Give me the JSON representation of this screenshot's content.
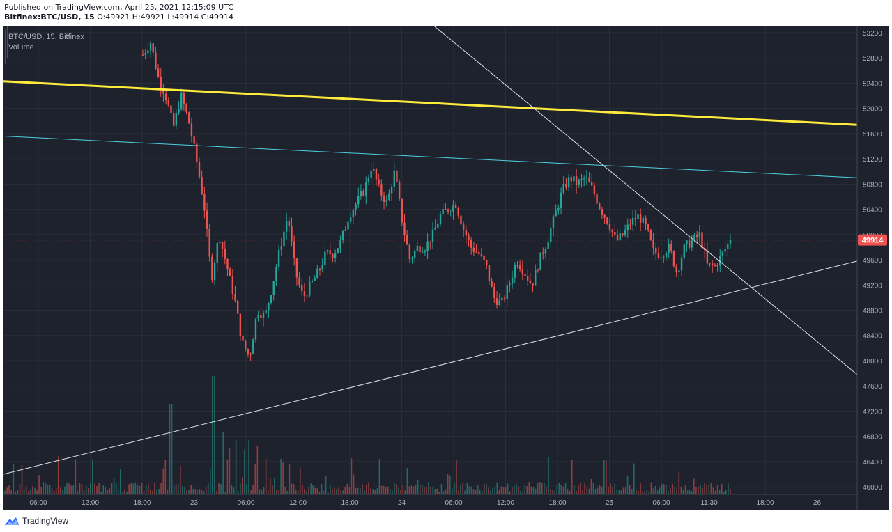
{
  "header": {
    "published": "Published on TradingView.com, April 25, 2021 12:15:09 UTC",
    "symbol_line": "Bitfinex:BTC/USD, 15",
    "ohlc": " O:49921 H:49921 L:49914 C:49914"
  },
  "chart_data": {
    "type": "candlestick",
    "title": "BTC/USD, 15, Bitfinex",
    "volume_label": "Volume",
    "last_price": 49914,
    "last_price_label": "49914",
    "y_ticks": [
      "53200",
      "52800",
      "52400",
      "52000",
      "51600",
      "51200",
      "50800",
      "50400",
      "50000",
      "49600",
      "49200",
      "48800",
      "48400",
      "48000",
      "47600",
      "47200",
      "46800",
      "46400",
      "46000"
    ],
    "y_tick_values": [
      53200,
      52800,
      52400,
      52000,
      51600,
      51200,
      50800,
      50400,
      50000,
      49600,
      49200,
      48800,
      48400,
      48000,
      47600,
      47200,
      46800,
      46400,
      46000
    ],
    "x_ticks": [
      "06:00",
      "12:00",
      "18:00",
      "23",
      "06:00",
      "12:00",
      "18:00",
      "24",
      "06:00",
      "12:00",
      "18:00",
      "25",
      "06:00",
      "11:30",
      "18:00",
      "26"
    ],
    "ylim": [
      45880,
      53310
    ],
    "colors": {
      "background": "#1e222d",
      "up": "#26a69a",
      "down": "#ef5350",
      "grid": "#2a2e39",
      "text": "#b2b5be",
      "price_badge": "#ef5350",
      "yellow_line": "#ffeb3b",
      "cyan_line": "#4dd0e1",
      "trend_line": "#e0e3eb"
    },
    "trend_lines": [
      {
        "color": "yellow",
        "from": {
          "x": 0,
          "y": 52430
        },
        "to": {
          "x": 1,
          "y": 51740
        }
      },
      {
        "color": "cyan",
        "from": {
          "x": 0,
          "y": 51560
        },
        "to": {
          "x": 1,
          "y": 50900
        }
      },
      {
        "color": "white",
        "from": {
          "x": 0,
          "y": 46200
        },
        "to": {
          "x": 1,
          "y": 49580
        }
      },
      {
        "color": "white",
        "from": {
          "x": 0.505,
          "y": 53300
        },
        "to": {
          "x": 1,
          "y": 47780
        }
      }
    ],
    "price_path": [
      52850,
      53050,
      52500,
      52200,
      51700,
      52200,
      51800,
      51200,
      50500,
      49300,
      50000,
      49500,
      49000,
      48300,
      48050,
      48800,
      48700,
      49200,
      49800,
      50300,
      49400,
      49000,
      49200,
      49400,
      49700,
      49700,
      49900,
      50300,
      50500,
      50700,
      51100,
      50700,
      50500,
      51000,
      50200,
      49600,
      49800,
      49800,
      50000,
      50300,
      50400,
      50500,
      50100,
      49800,
      49700,
      49500,
      49000,
      48900,
      49200,
      49600,
      49400,
      49200,
      49600,
      49900,
      50300,
      50700,
      50900,
      50800,
      50900,
      50700,
      50400,
      50200,
      49900,
      50000,
      50200,
      50300,
      50100,
      49700,
      49700,
      49800,
      49400,
      49800,
      49900,
      50000,
      49500,
      49500,
      49700,
      49914
    ]
  },
  "footer": {
    "brand": "TradingView"
  }
}
